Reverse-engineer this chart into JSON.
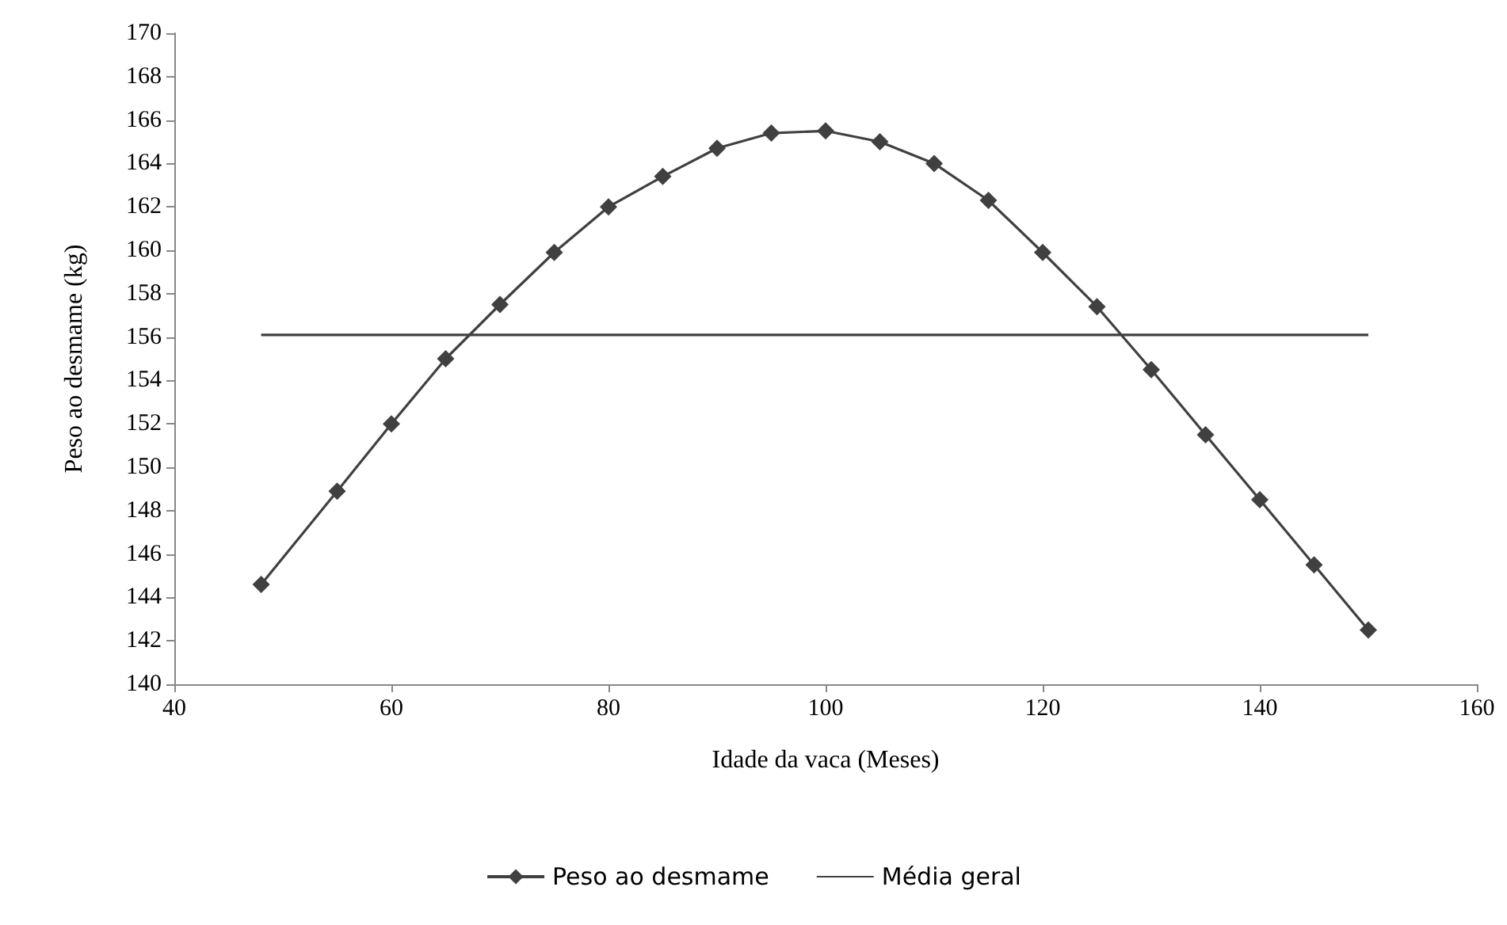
{
  "chart_data": {
    "type": "line",
    "xlabel": "Idade da vaca (Meses)",
    "ylabel": "Peso ao desmame (kg)",
    "xlim": [
      40,
      160
    ],
    "xticks": [
      40,
      60,
      80,
      100,
      120,
      140,
      160
    ],
    "ylim": [
      140,
      170
    ],
    "yticks": [
      140,
      142,
      144,
      146,
      148,
      150,
      152,
      154,
      156,
      158,
      160,
      162,
      164,
      166,
      168,
      170
    ],
    "grid": false,
    "legend": "bottom",
    "series": [
      {
        "name": "Peso ao desmame",
        "color": "#404040",
        "marker": "diamond",
        "x": [
          48,
          55,
          60,
          65,
          70,
          75,
          80,
          85,
          90,
          95,
          100,
          105,
          110,
          115,
          120,
          125,
          130,
          135,
          140,
          145,
          150
        ],
        "values": [
          144.6,
          148.9,
          152.0,
          155.0,
          157.5,
          159.9,
          162.0,
          163.4,
          164.7,
          165.4,
          165.5,
          165.0,
          164.0,
          162.3,
          159.9,
          157.4,
          154.5,
          151.5,
          148.5,
          145.5,
          142.5
        ]
      },
      {
        "name": "Média geral",
        "color": "#404040",
        "marker": "none",
        "x": [
          48,
          150
        ],
        "values": [
          156.1,
          156.1
        ]
      }
    ]
  }
}
